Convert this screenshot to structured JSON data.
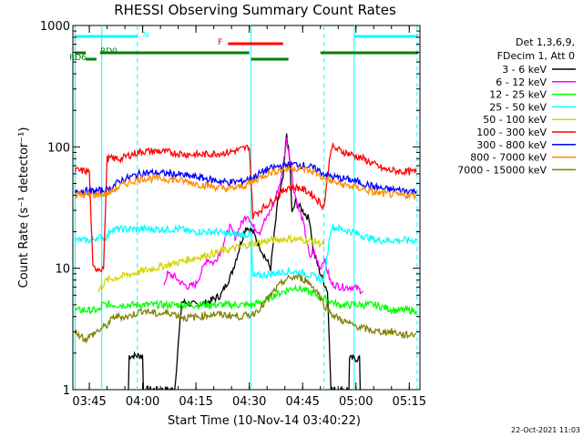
{
  "chart_data": {
    "type": "line",
    "title": "RHESSI Observing Summary Count Rates",
    "xlabel": "Start Time (10-Nov-14 03:40:22)",
    "ylabel": "Count Rate (s⁻¹ detector⁻¹)",
    "y_scale": "log",
    "ylim": [
      1,
      1000
    ],
    "xlim_minutes": [
      220.37,
      318.0
    ],
    "x_ticks": [
      {
        "m": 225,
        "label": "03:45"
      },
      {
        "m": 240,
        "label": "04:00"
      },
      {
        "m": 255,
        "label": "04:15"
      },
      {
        "m": 270,
        "label": "04:30"
      },
      {
        "m": 285,
        "label": "04:45"
      },
      {
        "m": 300,
        "label": "05:00"
      },
      {
        "m": 315,
        "label": "05:15"
      }
    ],
    "y_ticks": [
      {
        "v": 1,
        "label": "1"
      },
      {
        "v": 10,
        "label": "10"
      },
      {
        "v": 100,
        "label": "100"
      },
      {
        "v": 1000,
        "label": "1000"
      }
    ],
    "legend_header": [
      "Det 1,3,6,9,",
      "FDecim 1, Att 0"
    ],
    "series": [
      {
        "name": "3 - 6 keV",
        "color": "#000000",
        "points": [
          [
            236.0,
            1.0
          ],
          [
            236.2,
            1.9
          ],
          [
            240.0,
            1.9
          ],
          [
            240.2,
            1.0
          ],
          [
            249.0,
            1.0
          ],
          [
            251.0,
            5.3
          ],
          [
            255.0,
            5.0
          ],
          [
            258.0,
            5.2
          ],
          [
            262.0,
            6.0
          ],
          [
            265.0,
            9.0
          ],
          [
            267.0,
            14.0
          ],
          [
            269.0,
            22.0
          ],
          [
            271.0,
            20.0
          ],
          [
            273.0,
            15.0
          ],
          [
            276.0,
            10.0
          ],
          [
            278.0,
            35.0
          ],
          [
            279.5,
            55.0
          ],
          [
            280.5,
            130.0
          ],
          [
            281.5,
            70.0
          ],
          [
            282.0,
            28.0
          ],
          [
            283.0,
            35.0
          ],
          [
            285.0,
            30.0
          ],
          [
            287.0,
            25.0
          ],
          [
            288.0,
            14.0
          ],
          [
            290.0,
            9.0
          ],
          [
            292.0,
            6.5
          ],
          [
            293.0,
            1.0
          ],
          [
            298.0,
            1.0
          ],
          [
            298.2,
            1.8
          ],
          [
            301.0,
            1.8
          ],
          [
            301.2,
            1.0
          ]
        ]
      },
      {
        "name": "6 - 12 keV",
        "color": "#ff00ff",
        "points": [
          [
            246.0,
            7.5
          ],
          [
            247.0,
            9.0
          ],
          [
            249.0,
            8.5
          ],
          [
            251.0,
            7.5
          ],
          [
            253.0,
            7.0
          ],
          [
            255.0,
            7.4
          ],
          [
            257.0,
            10.0
          ],
          [
            258.0,
            12.0
          ],
          [
            260.0,
            11.0
          ],
          [
            262.0,
            14.0
          ],
          [
            263.0,
            17.0
          ],
          [
            264.5,
            22.0
          ],
          [
            266.0,
            18.0
          ],
          [
            268.0,
            24.0
          ],
          [
            269.5,
            28.0
          ],
          [
            271.0,
            22.0
          ],
          [
            273.0,
            20.0
          ],
          [
            274.0,
            24.0
          ],
          [
            275.0,
            26.0
          ],
          [
            277.0,
            35.0
          ],
          [
            279.0,
            55.0
          ],
          [
            280.5,
            115.0
          ],
          [
            281.5,
            80.0
          ],
          [
            282.5,
            45.0
          ],
          [
            284.0,
            30.0
          ],
          [
            285.0,
            25.0
          ],
          [
            286.0,
            18.0
          ],
          [
            287.0,
            12.0
          ],
          [
            288.0,
            14.0
          ],
          [
            290.0,
            10.0
          ],
          [
            291.0,
            12.0
          ],
          [
            293.0,
            7.5
          ],
          [
            296.0,
            7.0
          ],
          [
            299.0,
            7.0
          ],
          [
            302.0,
            6.5
          ]
        ]
      },
      {
        "name": "12 - 25 keV",
        "color": "#00ff00",
        "points": [
          [
            221.0,
            4.5
          ],
          [
            228.0,
            4.5
          ],
          [
            228.5,
            5.0
          ],
          [
            236.0,
            5.0
          ],
          [
            243.0,
            5.0
          ],
          [
            250.0,
            5.0
          ],
          [
            257.0,
            5.0
          ],
          [
            264.0,
            5.0
          ],
          [
            270.0,
            5.0
          ],
          [
            271.0,
            5.0
          ],
          [
            275.0,
            5.5
          ],
          [
            277.0,
            6.0
          ],
          [
            280.0,
            6.5
          ],
          [
            283.0,
            7.0
          ],
          [
            286.0,
            6.5
          ],
          [
            289.0,
            6.0
          ],
          [
            292.0,
            5.5
          ],
          [
            295.0,
            5.0
          ],
          [
            300.0,
            5.0
          ],
          [
            305.0,
            5.0
          ],
          [
            311.0,
            4.5
          ],
          [
            317.0,
            4.5
          ]
        ]
      },
      {
        "name": "25 - 50 keV",
        "color": "#00ffff",
        "points": [
          [
            221.0,
            17.0
          ],
          [
            226.0,
            17.0
          ],
          [
            227.0,
            18.0
          ],
          [
            230.0,
            18.0
          ],
          [
            231.0,
            21.0
          ],
          [
            241.0,
            21.0
          ],
          [
            251.0,
            21.0
          ],
          [
            253.0,
            20.0
          ],
          [
            261.0,
            20.0
          ],
          [
            264.0,
            19.0
          ],
          [
            270.5,
            19.0
          ],
          [
            271.0,
            8.5
          ],
          [
            276.0,
            9.0
          ],
          [
            281.0,
            9.5
          ],
          [
            286.0,
            9.0
          ],
          [
            291.0,
            8.0
          ],
          [
            293.0,
            22.0
          ],
          [
            296.0,
            21.0
          ],
          [
            299.0,
            20.0
          ],
          [
            303.0,
            18.0
          ],
          [
            306.0,
            17.0
          ],
          [
            317.0,
            17.0
          ]
        ]
      },
      {
        "name": "50 - 100 keV",
        "color": "#d4d400",
        "points": [
          [
            227.5,
            6.5
          ],
          [
            228.5,
            7.0
          ],
          [
            229.0,
            7.5
          ],
          [
            230.0,
            8.0
          ],
          [
            271.0,
            16.0
          ],
          [
            276.0,
            17.0
          ],
          [
            281.0,
            17.5
          ],
          [
            286.0,
            17.0
          ],
          [
            289.0,
            16.5
          ],
          [
            291.0,
            15.5
          ]
        ]
      },
      {
        "name": "100 - 300 keV",
        "color": "#ff0000",
        "points": [
          [
            221.0,
            64.0
          ],
          [
            225.0,
            63.0
          ],
          [
            226.0,
            10.0
          ],
          [
            229.0,
            10.0
          ],
          [
            230.0,
            80.0
          ],
          [
            234.0,
            80.0
          ],
          [
            236.0,
            85.0
          ],
          [
            240.0,
            92.0
          ],
          [
            244.0,
            92.0
          ],
          [
            248.0,
            90.0
          ],
          [
            252.0,
            87.0
          ],
          [
            256.0,
            86.0
          ],
          [
            260.0,
            88.0
          ],
          [
            264.0,
            90.0
          ],
          [
            268.0,
            96.0
          ],
          [
            270.0,
            100.0
          ],
          [
            271.0,
            27.0
          ],
          [
            273.0,
            30.0
          ],
          [
            276.0,
            35.0
          ],
          [
            279.0,
            42.0
          ],
          [
            281.0,
            47.0
          ],
          [
            284.0,
            46.0
          ],
          [
            287.0,
            42.0
          ],
          [
            289.0,
            37.0
          ],
          [
            291.0,
            32.0
          ],
          [
            293.0,
            100.0
          ],
          [
            296.0,
            92.0
          ],
          [
            299.0,
            86.0
          ],
          [
            302.0,
            80.0
          ],
          [
            305.0,
            72.0
          ],
          [
            308.0,
            65.0
          ],
          [
            312.0,
            63.0
          ],
          [
            317.0,
            62.0
          ]
        ]
      },
      {
        "name": "300 - 800 keV",
        "color": "#0000ff",
        "points": [
          [
            221.0,
            44.0
          ],
          [
            225.0,
            43.0
          ],
          [
            230.0,
            44.0
          ],
          [
            234.0,
            53.0
          ],
          [
            237.0,
            57.0
          ],
          [
            240.0,
            61.0
          ],
          [
            244.0,
            61.0
          ],
          [
            248.0,
            60.0
          ],
          [
            252.0,
            58.0
          ],
          [
            256.0,
            56.0
          ],
          [
            260.0,
            53.0
          ],
          [
            264.0,
            51.0
          ],
          [
            268.0,
            52.0
          ],
          [
            271.0,
            56.0
          ],
          [
            275.0,
            65.0
          ],
          [
            279.0,
            70.0
          ],
          [
            283.0,
            72.0
          ],
          [
            286.0,
            70.0
          ],
          [
            289.0,
            65.0
          ],
          [
            291.0,
            60.0
          ],
          [
            293.0,
            57.0
          ],
          [
            296.0,
            55.0
          ],
          [
            299.0,
            53.0
          ],
          [
            302.0,
            50.0
          ],
          [
            305.0,
            47.0
          ],
          [
            308.0,
            45.0
          ],
          [
            312.0,
            44.0
          ],
          [
            317.0,
            43.0
          ]
        ]
      },
      {
        "name": "800 - 7000 keV",
        "color": "#ff8c00",
        "points": [
          [
            221.0,
            40.0
          ],
          [
            225.0,
            40.0
          ],
          [
            230.0,
            41.0
          ],
          [
            234.0,
            48.0
          ],
          [
            237.0,
            52.0
          ],
          [
            240.0,
            55.0
          ],
          [
            244.0,
            55.0
          ],
          [
            248.0,
            54.0
          ],
          [
            252.0,
            52.0
          ],
          [
            256.0,
            49.0
          ],
          [
            260.0,
            47.0
          ],
          [
            264.0,
            45.0
          ],
          [
            268.0,
            47.0
          ],
          [
            271.0,
            52.0
          ],
          [
            275.0,
            60.0
          ],
          [
            279.0,
            65.0
          ],
          [
            283.0,
            67.0
          ],
          [
            286.0,
            65.0
          ],
          [
            289.0,
            60.0
          ],
          [
            291.0,
            55.0
          ],
          [
            293.0,
            52.0
          ],
          [
            296.0,
            49.0
          ],
          [
            299.0,
            47.0
          ],
          [
            302.0,
            45.0
          ],
          [
            305.0,
            42.0
          ],
          [
            308.0,
            41.0
          ],
          [
            312.0,
            40.0
          ],
          [
            317.0,
            40.0
          ]
        ]
      },
      {
        "name": "7000 - 15000 keV",
        "color": "#808000",
        "points": [
          [
            221.0,
            3.0
          ],
          [
            224.0,
            2.6
          ],
          [
            227.0,
            3.0
          ],
          [
            230.0,
            3.4
          ],
          [
            232.0,
            4.0
          ],
          [
            236.0,
            4.0
          ],
          [
            240.0,
            4.5
          ],
          [
            244.0,
            4.2
          ],
          [
            248.0,
            4.3
          ],
          [
            252.0,
            3.9
          ],
          [
            256.0,
            4.0
          ],
          [
            260.0,
            4.2
          ],
          [
            264.0,
            4.1
          ],
          [
            268.0,
            4.0
          ],
          [
            271.0,
            4.2
          ],
          [
            274.0,
            5.0
          ],
          [
            277.0,
            6.5
          ],
          [
            280.0,
            8.0
          ],
          [
            283.0,
            8.5
          ],
          [
            286.0,
            8.0
          ],
          [
            289.0,
            6.5
          ],
          [
            291.0,
            5.0
          ],
          [
            294.0,
            4.0
          ],
          [
            298.0,
            3.5
          ],
          [
            302.0,
            3.2
          ],
          [
            306.0,
            3.0
          ],
          [
            310.0,
            3.0
          ],
          [
            314.0,
            2.8
          ],
          [
            317.0,
            2.9
          ]
        ]
      }
    ],
    "state_bars": [
      {
        "label": "N",
        "color": "#00ffff",
        "segments": [
          [
            221.0,
            238.5
          ],
          [
            299.5,
            317.5
          ]
        ]
      },
      {
        "label": "F",
        "color": "#ff0000",
        "segments": [
          [
            264.0,
            279.5
          ]
        ]
      },
      {
        "label": "RD0",
        "color": "#008000",
        "segments": [
          [
            221.0,
            224.0
          ],
          [
            228.0,
            270.0
          ],
          [
            290.0,
            317.5
          ]
        ]
      },
      {
        "label": "RD6",
        "color": "#008000",
        "segments": [
          [
            224.0,
            227.0
          ],
          [
            270.5,
            281.0
          ]
        ]
      }
    ],
    "vlines": [
      {
        "m": 221.0,
        "color": "#00ffff",
        "dash": "none"
      },
      {
        "m": 228.5,
        "color": "#00ffff",
        "dash": "none"
      },
      {
        "m": 238.5,
        "color": "#00ffff",
        "dash": "5,4"
      },
      {
        "m": 270.5,
        "color": "#00ffff",
        "dash": "none"
      },
      {
        "m": 291.0,
        "color": "#00ffff",
        "dash": "5,4"
      },
      {
        "m": 299.5,
        "color": "#00ffff",
        "dash": "none"
      },
      {
        "m": 317.2,
        "color": "#00ffff",
        "dash": "5,4"
      }
    ],
    "timestamp": "22-Oct-2021 11:03"
  }
}
